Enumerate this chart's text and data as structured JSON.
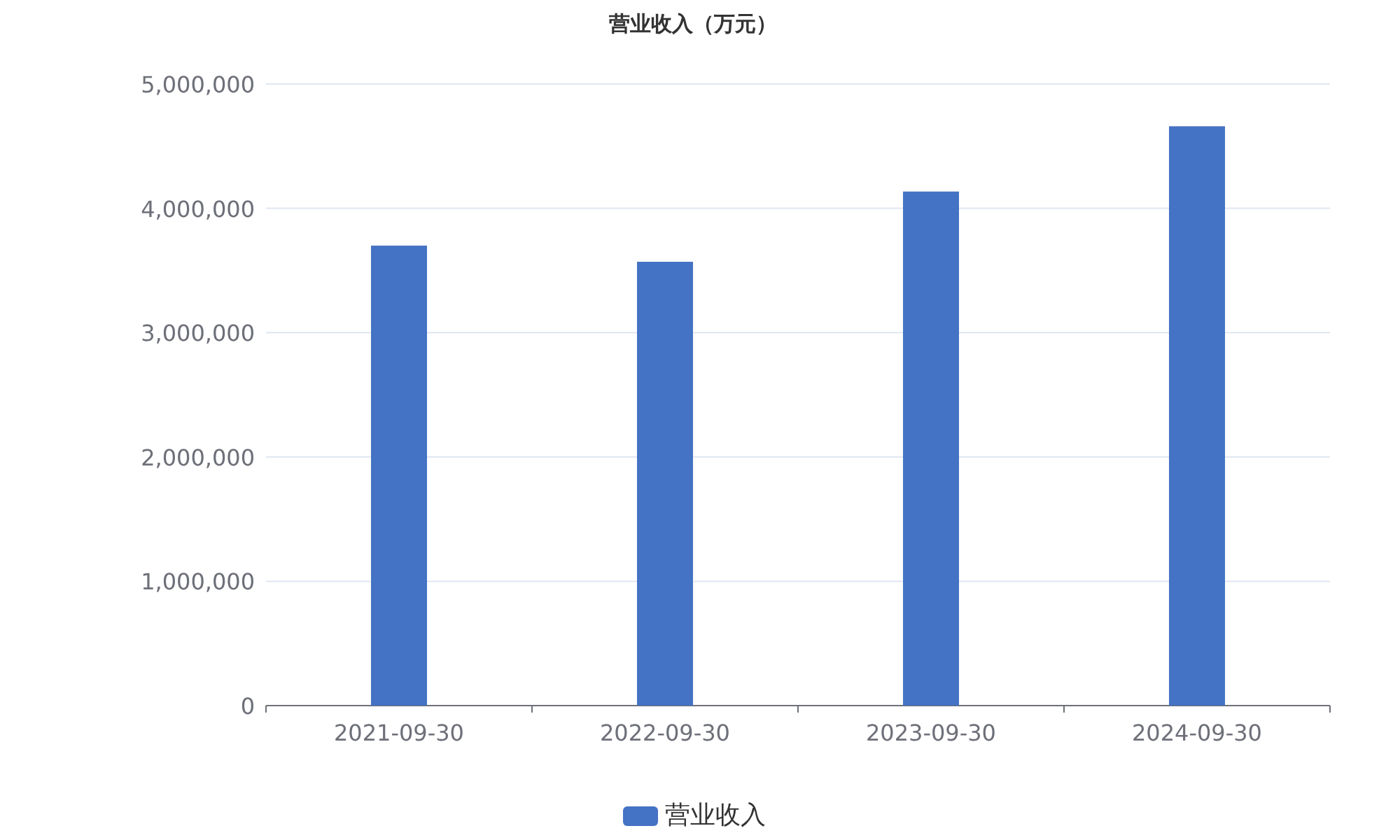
{
  "chart_data": {
    "type": "bar",
    "title": "营业收入（万元）",
    "categories": [
      "2021-09-30",
      "2022-09-30",
      "2023-09-30",
      "2024-09-30"
    ],
    "series": [
      {
        "name": "营业收入",
        "color": "#4472c4",
        "values": [
          3700000,
          3570000,
          4135000,
          4660000
        ]
      }
    ],
    "ylim": [
      0,
      5000000
    ],
    "yticks": [
      {
        "value": 0,
        "label": "0"
      },
      {
        "value": 1000000,
        "label": "1,000,000"
      },
      {
        "value": 2000000,
        "label": "2,000,000"
      },
      {
        "value": 3000000,
        "label": "3,000,000"
      },
      {
        "value": 4000000,
        "label": "4,000,000"
      },
      {
        "value": 5000000,
        "label": "5,000,000"
      }
    ],
    "grid": "y",
    "legend": "bottom"
  }
}
